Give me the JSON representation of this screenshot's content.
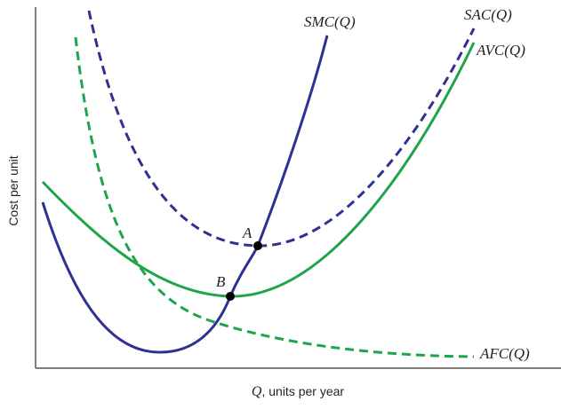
{
  "y_axis_label": "Cost per unit",
  "x_axis_label": {
    "symbol": "Q",
    "text": ", units per year"
  },
  "curves": [
    {
      "label": "SMC(Q)"
    },
    {
      "label": "SAC(Q)"
    },
    {
      "label": "AVC(Q)"
    },
    {
      "label": "AFC(Q)"
    }
  ],
  "points": [
    {
      "label": "A"
    },
    {
      "label": "B"
    }
  ]
}
